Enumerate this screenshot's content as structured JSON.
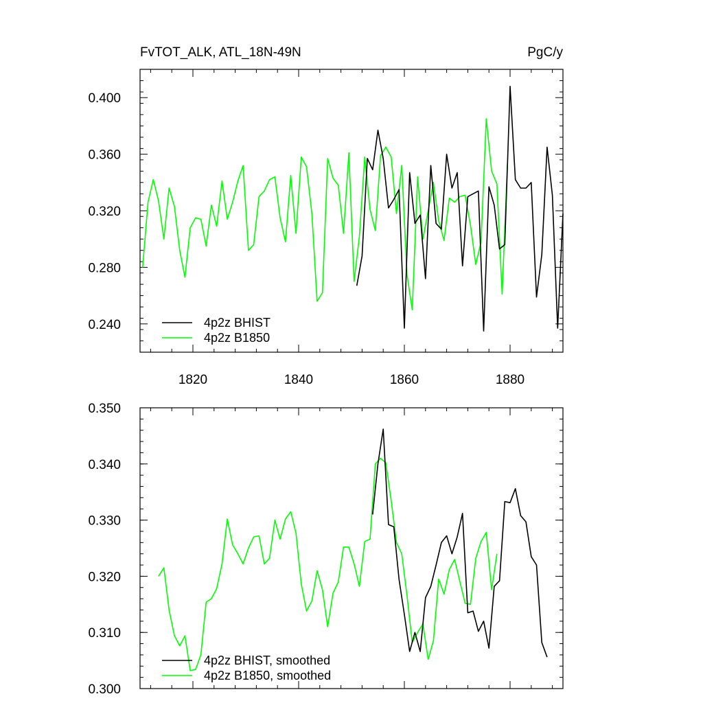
{
  "header": {
    "left_title": "FvTOT_ALK, ATL_18N-49N",
    "right_title": "PgC/y"
  },
  "chart_data": [
    {
      "type": "line",
      "panel": "top",
      "xlim": [
        1810,
        1890
      ],
      "ylim": [
        0.22,
        0.42
      ],
      "x_ticks": [
        1820,
        1840,
        1860,
        1880
      ],
      "x_tick_labels": [
        "1820",
        "1840",
        "1860",
        "1880"
      ],
      "y_ticks": [
        0.24,
        0.28,
        0.32,
        0.36,
        0.4
      ],
      "y_tick_labels": [
        "0.240",
        "0.280",
        "0.320",
        "0.360",
        "0.400"
      ],
      "legend_position": "bottom-left",
      "series": [
        {
          "name": "4p2z BHIST",
          "color": "#000000",
          "x0": 1851,
          "dx": 1,
          "values": [
            0.267,
            0.288,
            0.357,
            0.349,
            0.377,
            0.357,
            0.322,
            0.328,
            0.335,
            0.237,
            0.347,
            0.311,
            0.317,
            0.272,
            0.352,
            0.311,
            0.307,
            0.36,
            0.336,
            0.347,
            0.281,
            0.33,
            0.332,
            0.334,
            0.235,
            0.337,
            0.324,
            0.293,
            0.296,
            0.408,
            0.342,
            0.336,
            0.336,
            0.34,
            0.259,
            0.289,
            0.365,
            0.331,
            0.237,
            0.318
          ]
        },
        {
          "name": "4p2z B1850",
          "color": "#00ff00",
          "x0": 1810.5,
          "dx": 1,
          "values": [
            0.28,
            0.326,
            0.342,
            0.327,
            0.3,
            0.336,
            0.323,
            0.292,
            0.273,
            0.308,
            0.315,
            0.314,
            0.295,
            0.324,
            0.309,
            0.341,
            0.314,
            0.326,
            0.341,
            0.352,
            0.292,
            0.296,
            0.33,
            0.334,
            0.342,
            0.344,
            0.315,
            0.298,
            0.345,
            0.304,
            0.358,
            0.351,
            0.318,
            0.256,
            0.262,
            0.357,
            0.343,
            0.338,
            0.304,
            0.361,
            0.27,
            0.302,
            0.358,
            0.321,
            0.306,
            0.359,
            0.365,
            0.358,
            0.318,
            0.352,
            0.275,
            0.25,
            0.344,
            0.3,
            0.32,
            0.34,
            0.313,
            0.299,
            0.329,
            0.326,
            0.33,
            0.331,
            0.31,
            0.282,
            0.298,
            0.385,
            0.348,
            0.339,
            0.261,
            0.353
          ]
        }
      ]
    },
    {
      "type": "line",
      "panel": "bottom",
      "xlim": [
        1810,
        1890
      ],
      "ylim": [
        0.3,
        0.35
      ],
      "x_ticks": [
        1820,
        1840,
        1860,
        1880
      ],
      "y_ticks": [
        0.3,
        0.31,
        0.32,
        0.33,
        0.34,
        0.35
      ],
      "y_tick_labels": [
        "0.300",
        "0.310",
        "0.320",
        "0.330",
        "0.340",
        "0.350"
      ],
      "legend_position": "bottom-left",
      "series": [
        {
          "name": "4p2z BHIST, smoothed",
          "color": "#000000",
          "x0": 1854,
          "dx": 1,
          "values": [
            0.331,
            0.34,
            0.3462,
            0.3292,
            0.3288,
            0.3194,
            0.3132,
            0.3066,
            0.31,
            0.3066,
            0.3162,
            0.3182,
            0.322,
            0.326,
            0.3272,
            0.324,
            0.327,
            0.3312,
            0.3135,
            0.3138,
            0.3102,
            0.312,
            0.3072,
            0.3182,
            0.3192,
            0.3333,
            0.3331,
            0.3356,
            0.3308,
            0.3297,
            0.3235,
            0.322,
            0.3082,
            0.3056
          ]
        },
        {
          "name": "4p2z B1850, smoothed",
          "color": "#00ff00",
          "x0": 1813.5,
          "dx": 1,
          "values": [
            0.32,
            0.3215,
            0.314,
            0.3094,
            0.3076,
            0.3094,
            0.3032,
            0.3034,
            0.306,
            0.3154,
            0.316,
            0.3178,
            0.3222,
            0.3302,
            0.3256,
            0.324,
            0.3222,
            0.325,
            0.327,
            0.3272,
            0.3222,
            0.3232,
            0.33,
            0.3266,
            0.3302,
            0.3315,
            0.3277,
            0.3186,
            0.3138,
            0.3156,
            0.321,
            0.3176,
            0.311,
            0.317,
            0.319,
            0.3252,
            0.3252,
            0.3222,
            0.3182,
            0.3262,
            0.3266,
            0.34,
            0.341,
            0.3402,
            0.3335,
            0.326,
            0.324,
            0.3166,
            0.3082,
            0.31,
            0.3115,
            0.3052,
            0.3085,
            0.3195,
            0.3168,
            0.3212,
            0.323,
            0.3191,
            0.3152,
            0.315,
            0.3232,
            0.3262,
            0.3278,
            0.3176,
            0.324
          ]
        }
      ]
    }
  ]
}
